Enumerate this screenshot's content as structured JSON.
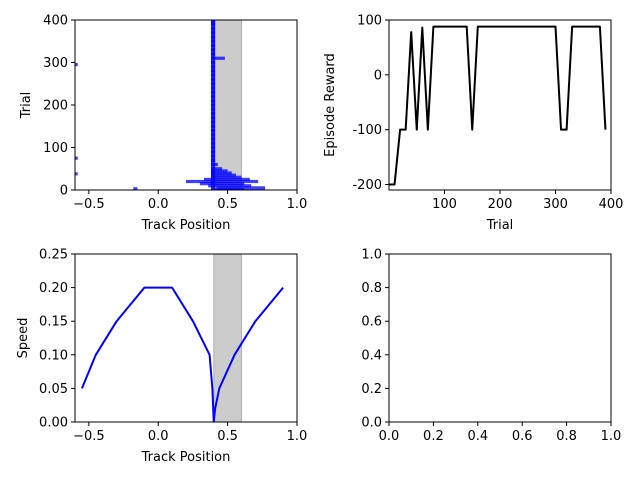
{
  "chart_data": [
    {
      "type": "scatter",
      "xlabel": "Track Position",
      "ylabel": "Trial",
      "xlim": [
        -0.6,
        1.0
      ],
      "ylim": [
        0,
        400
      ],
      "xticks": [
        -0.5,
        0.0,
        0.5,
        1.0
      ],
      "yticks": [
        0,
        100,
        200,
        300,
        400
      ],
      "shaded_x_range": [
        0.4,
        0.6
      ],
      "color": "#0000ff",
      "grid": false,
      "segments": [
        {
          "trial": 398,
          "x0": 0.38,
          "x1": 0.41
        },
        {
          "trial": 390,
          "x0": 0.38,
          "x1": 0.41
        },
        {
          "trial": 380,
          "x0": 0.38,
          "x1": 0.41
        },
        {
          "trial": 370,
          "x0": 0.38,
          "x1": 0.41
        },
        {
          "trial": 360,
          "x0": 0.38,
          "x1": 0.41
        },
        {
          "trial": 350,
          "x0": 0.38,
          "x1": 0.41
        },
        {
          "trial": 340,
          "x0": 0.38,
          "x1": 0.41
        },
        {
          "trial": 330,
          "x0": 0.38,
          "x1": 0.41
        },
        {
          "trial": 320,
          "x0": 0.38,
          "x1": 0.41
        },
        {
          "trial": 310,
          "x0": 0.38,
          "x1": 0.48
        },
        {
          "trial": 300,
          "x0": 0.38,
          "x1": 0.41
        },
        {
          "trial": 295,
          "x0": -0.6,
          "x1": -0.58
        },
        {
          "trial": 290,
          "x0": 0.38,
          "x1": 0.41
        },
        {
          "trial": 280,
          "x0": 0.38,
          "x1": 0.41
        },
        {
          "trial": 270,
          "x0": 0.38,
          "x1": 0.41
        },
        {
          "trial": 260,
          "x0": 0.38,
          "x1": 0.41
        },
        {
          "trial": 250,
          "x0": 0.38,
          "x1": 0.41
        },
        {
          "trial": 240,
          "x0": 0.38,
          "x1": 0.41
        },
        {
          "trial": 230,
          "x0": 0.38,
          "x1": 0.41
        },
        {
          "trial": 220,
          "x0": 0.38,
          "x1": 0.41
        },
        {
          "trial": 210,
          "x0": 0.38,
          "x1": 0.41
        },
        {
          "trial": 200,
          "x0": 0.38,
          "x1": 0.41
        },
        {
          "trial": 190,
          "x0": 0.38,
          "x1": 0.41
        },
        {
          "trial": 180,
          "x0": 0.38,
          "x1": 0.41
        },
        {
          "trial": 170,
          "x0": 0.38,
          "x1": 0.41
        },
        {
          "trial": 160,
          "x0": 0.38,
          "x1": 0.41
        },
        {
          "trial": 150,
          "x0": 0.38,
          "x1": 0.41
        },
        {
          "trial": 140,
          "x0": 0.38,
          "x1": 0.41
        },
        {
          "trial": 130,
          "x0": 0.38,
          "x1": 0.41
        },
        {
          "trial": 120,
          "x0": 0.38,
          "x1": 0.41
        },
        {
          "trial": 110,
          "x0": 0.38,
          "x1": 0.41
        },
        {
          "trial": 100,
          "x0": 0.38,
          "x1": 0.41
        },
        {
          "trial": 90,
          "x0": 0.38,
          "x1": 0.41
        },
        {
          "trial": 80,
          "x0": 0.38,
          "x1": 0.41
        },
        {
          "trial": 75,
          "x0": -0.6,
          "x1": -0.58
        },
        {
          "trial": 70,
          "x0": 0.38,
          "x1": 0.41
        },
        {
          "trial": 60,
          "x0": 0.38,
          "x1": 0.43
        },
        {
          "trial": 50,
          "x0": 0.38,
          "x1": 0.46
        },
        {
          "trial": 45,
          "x0": 0.38,
          "x1": 0.5
        },
        {
          "trial": 40,
          "x0": 0.38,
          "x1": 0.53
        },
        {
          "trial": 38,
          "x0": -0.6,
          "x1": -0.58
        },
        {
          "trial": 35,
          "x0": 0.38,
          "x1": 0.56
        },
        {
          "trial": 30,
          "x0": 0.38,
          "x1": 0.6
        },
        {
          "trial": 25,
          "x0": 0.33,
          "x1": 0.66
        },
        {
          "trial": 20,
          "x0": 0.2,
          "x1": 0.72
        },
        {
          "trial": 15,
          "x0": 0.3,
          "x1": 0.62
        },
        {
          "trial": 10,
          "x0": 0.36,
          "x1": 0.67
        },
        {
          "trial": 5,
          "x0": 0.42,
          "x1": 0.77
        },
        {
          "trial": 3,
          "x0": -0.18,
          "x1": -0.15
        },
        {
          "trial": 1,
          "x0": 0.4,
          "x1": 0.62
        }
      ]
    },
    {
      "type": "line",
      "xlabel": "Trial",
      "ylabel": "Episode Reward",
      "xlim": [
        0,
        400
      ],
      "ylim": [
        -210,
        100
      ],
      "xticks": [
        100,
        200,
        300,
        400
      ],
      "yticks": [
        -200,
        -100,
        0,
        100
      ],
      "color": "#000000",
      "grid": false,
      "series": [
        {
          "x": [
            0,
            10,
            20,
            30,
            40,
            50,
            60,
            70,
            80,
            90,
            100,
            110,
            120,
            130,
            140,
            150,
            160,
            170,
            180,
            190,
            200,
            210,
            220,
            230,
            240,
            250,
            260,
            270,
            280,
            290,
            300,
            310,
            320,
            330,
            340,
            350,
            360,
            370,
            380,
            390
          ],
          "values": [
            -200,
            -200,
            -100,
            -100,
            78,
            -100,
            86,
            -100,
            88,
            88,
            88,
            88,
            88,
            88,
            88,
            -100,
            88,
            88,
            88,
            88,
            88,
            88,
            88,
            88,
            88,
            88,
            88,
            88,
            88,
            88,
            88,
            -100,
            -100,
            88,
            88,
            88,
            88,
            88,
            88,
            -100
          ]
        }
      ]
    },
    {
      "type": "line",
      "xlabel": "Track Position",
      "ylabel": "Speed",
      "xlim": [
        -0.6,
        1.0
      ],
      "ylim": [
        0.0,
        0.25
      ],
      "xticks": [
        -0.5,
        0.0,
        0.5,
        1.0
      ],
      "yticks": [
        0.0,
        0.05,
        0.1,
        0.15,
        0.2,
        0.25
      ],
      "shaded_x_range": [
        0.4,
        0.6
      ],
      "color": "#0000ff",
      "grid": false,
      "series": [
        {
          "x": [
            -0.55,
            -0.45,
            -0.3,
            -0.1,
            0.1,
            0.25,
            0.37,
            0.39,
            0.4,
            0.41,
            0.44,
            0.55,
            0.7,
            0.9
          ],
          "values": [
            0.05,
            0.1,
            0.15,
            0.2,
            0.2,
            0.15,
            0.1,
            0.05,
            0.0,
            0.02,
            0.05,
            0.1,
            0.15,
            0.2
          ]
        }
      ]
    },
    {
      "type": "line",
      "xlabel": "",
      "ylabel": "",
      "xlim": [
        0.0,
        1.0
      ],
      "ylim": [
        0.0,
        1.0
      ],
      "xticks": [
        0.0,
        0.2,
        0.4,
        0.6,
        0.8,
        1.0
      ],
      "yticks": [
        0.0,
        0.2,
        0.4,
        0.6,
        0.8,
        1.0
      ],
      "grid": false,
      "series": []
    }
  ]
}
